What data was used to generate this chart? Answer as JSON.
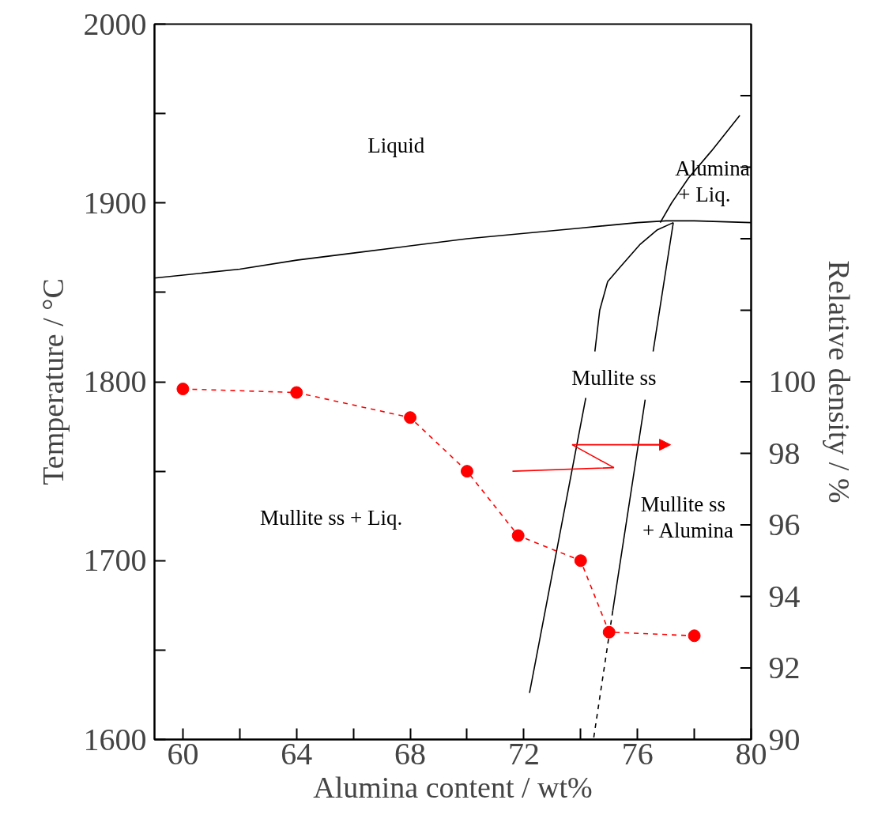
{
  "chart_data": {
    "type": "line",
    "xlabel": "Alumina content / wt%",
    "ylabel": "Temperature / °C",
    "y2label": "Relative density / %",
    "xlim": [
      59,
      80
    ],
    "xticks": [
      60,
      {
        "value": 62,
        "label": null
      },
      64,
      {
        "value": 66,
        "label": null
      },
      68,
      {
        "value": 70,
        "label": null
      },
      72,
      {
        "value": 74,
        "label": null
      },
      76,
      {
        "value": 78,
        "label": null
      },
      80
    ],
    "ylim": [
      1600,
      2000
    ],
    "yticks": [
      1600,
      {
        "value": 1650,
        "label": null
      },
      1700,
      {
        "value": 1750,
        "label": null
      },
      1800,
      {
        "value": 1850,
        "label": null
      },
      1900,
      {
        "value": 1950,
        "label": null
      },
      2000
    ],
    "y2lim": [
      90,
      110
    ],
    "y2ticks": [
      90,
      92,
      94,
      96,
      98,
      100,
      {
        "value": 102,
        "label": null
      },
      {
        "value": 104,
        "label": null
      },
      {
        "value": 106,
        "label": null
      },
      {
        "value": 108,
        "label": null
      }
    ],
    "grid": false,
    "series": [
      {
        "color": "#000000",
        "x": [
          59,
          62,
          64,
          66,
          68,
          70,
          72,
          74,
          76,
          77,
          78,
          80
        ],
        "values": [
          1858,
          1863,
          1868,
          1872,
          1876,
          1880,
          1883,
          1886,
          1889,
          1890,
          1890,
          1889
        ]
      },
      {
        "color": "#000000",
        "x": [
          76.8,
          77.2,
          77.8,
          78.6,
          79.6
        ],
        "values": [
          1889,
          1900,
          1914,
          1929,
          1949
        ]
      },
      {
        "color": "#000000",
        "x": [
          77.26,
          76.7,
          76.1,
          75.38,
          74.95,
          74.67,
          74.5,
          null,
          74.18,
          72.2
        ],
        "values": [
          1889,
          1885,
          1877,
          1864,
          1856,
          1840,
          1817,
          null,
          1791,
          1626
        ]
      },
      {
        "color": "#000000",
        "x": [
          77.26,
          76.55,
          null,
          76.27,
          75.13
        ],
        "values": [
          1889,
          1817,
          null,
          1790,
          1672
        ]
      },
      {
        "color": "#000000",
        "line_style": "dashed",
        "x": [
          75.13,
          74.45
        ],
        "values": [
          1672,
          1600
        ]
      },
      {
        "type": "line",
        "axis": "y2",
        "color": "#ff0000",
        "marker": "circle",
        "line_style": "dashed",
        "x": [
          60,
          64,
          68,
          70,
          71.8,
          74,
          75,
          78
        ],
        "values": [
          99.8,
          99.7,
          99.0,
          97.5,
          95.7,
          95.0,
          93.0,
          92.9
        ]
      }
    ],
    "annotations": [
      "Liquid",
      "Alumina\n   + Liq.",
      "Mullite ss",
      "Mullite   ss + Liq.",
      "Mullite   ss\n+ Alumina"
    ]
  }
}
